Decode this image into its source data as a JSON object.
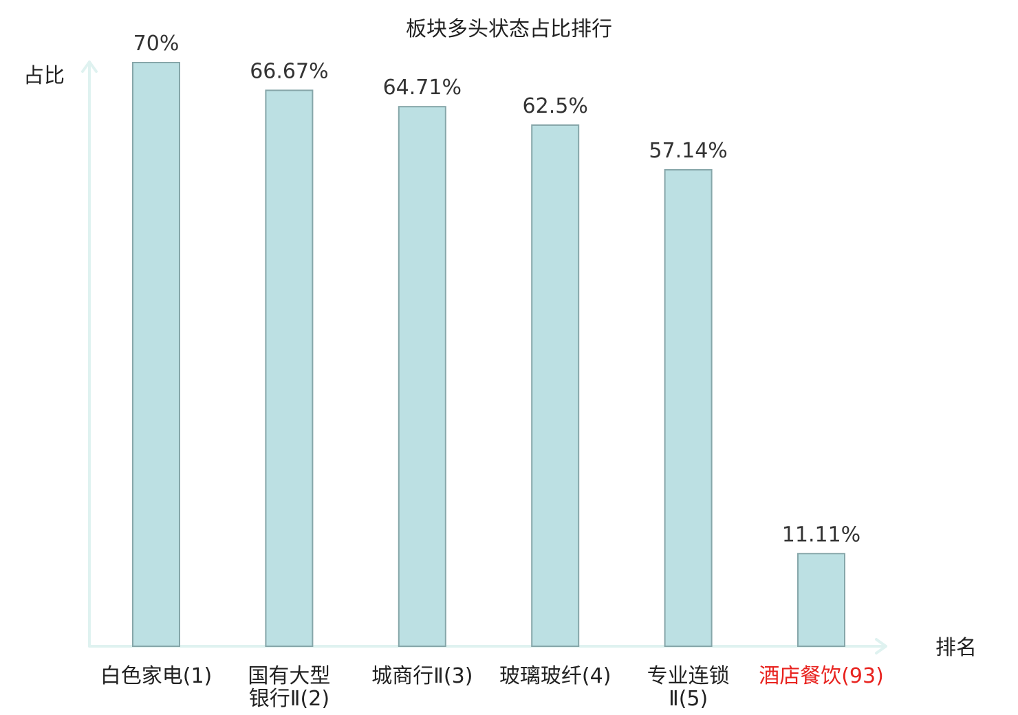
{
  "chart_data": {
    "type": "bar",
    "title": "板块多头状态占比排行",
    "ylabel": "占比",
    "xlabel": "排名",
    "ylim": [
      0,
      70
    ],
    "grid": false,
    "legend": "none",
    "categories": [
      [
        "白色家电(1)"
      ],
      [
        "国有大型",
        "银行Ⅱ(2)"
      ],
      [
        "城商行Ⅱ(3)"
      ],
      [
        "玻璃玻纤(4)"
      ],
      [
        "专业连锁",
        "Ⅱ(5)"
      ],
      [
        "酒店餐饮(93)"
      ]
    ],
    "values": [
      70,
      66.67,
      64.71,
      62.5,
      57.14,
      11.11
    ],
    "value_labels": [
      "70%",
      "66.67%",
      "64.71%",
      "62.5%",
      "57.14%",
      "11.11%"
    ],
    "highlight_index": 5,
    "colors": {
      "bar_fill": "#bce0e3",
      "bar_stroke": "#86a6a9",
      "axis": "#dff2f0",
      "text": "#222222",
      "highlight_text": "#e8231f"
    }
  }
}
